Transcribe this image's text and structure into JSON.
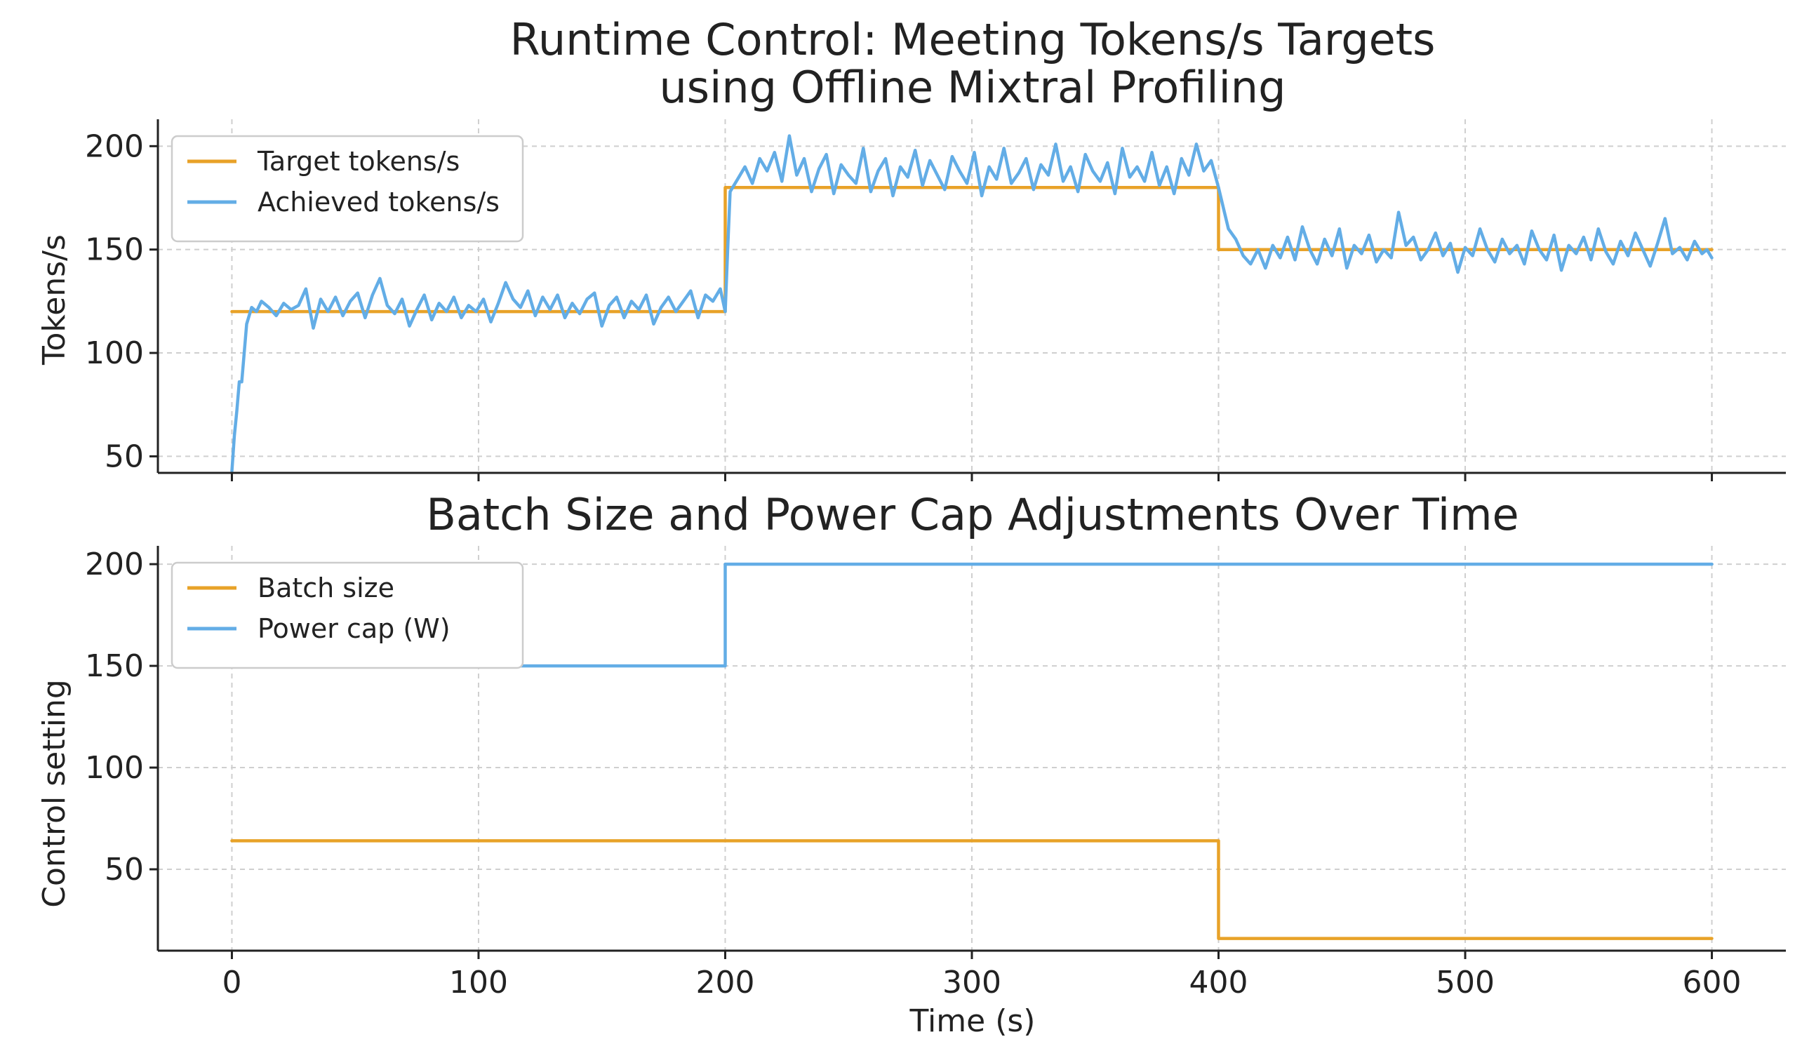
{
  "figure": {
    "xlabel": "Time (s)",
    "xticks": [
      0,
      100,
      200,
      300,
      400,
      500,
      600
    ]
  },
  "colors": {
    "orange": "#e8a228",
    "blue": "#63ade6"
  },
  "chart_data": [
    {
      "type": "line",
      "title_lines": [
        "Runtime Control: Meeting Tokens/s Targets",
        "using Offline Mixtral Profiling"
      ],
      "xlabel": "",
      "ylabel": "Tokens/s",
      "xlim": [
        -30,
        630
      ],
      "ylim": [
        42,
        213
      ],
      "yticks": [
        50,
        100,
        150,
        200
      ],
      "grid": true,
      "legend_position": "top-left",
      "series": [
        {
          "name": "Target tokens/s",
          "color": "orange",
          "step": true,
          "x": [
            0,
            200,
            200,
            400,
            400,
            600
          ],
          "values": [
            120,
            120,
            180,
            180,
            150,
            150
          ]
        },
        {
          "name": "Achieved tokens/s",
          "color": "blue",
          "x": [
            0,
            1,
            2,
            3,
            4,
            5,
            6,
            8,
            10,
            12,
            15,
            18,
            21,
            24,
            27,
            30,
            33,
            36,
            39,
            42,
            45,
            48,
            51,
            54,
            57,
            60,
            63,
            66,
            69,
            72,
            75,
            78,
            81,
            84,
            87,
            90,
            93,
            96,
            99,
            102,
            105,
            108,
            111,
            114,
            117,
            120,
            123,
            126,
            129,
            132,
            135,
            138,
            141,
            144,
            147,
            150,
            153,
            156,
            159,
            162,
            165,
            168,
            171,
            174,
            177,
            180,
            183,
            186,
            189,
            192,
            195,
            198,
            200,
            201,
            202,
            205,
            208,
            211,
            214,
            217,
            220,
            223,
            226,
            229,
            232,
            235,
            238,
            241,
            244,
            247,
            250,
            253,
            256,
            259,
            262,
            265,
            268,
            271,
            274,
            277,
            280,
            283,
            286,
            289,
            292,
            295,
            298,
            301,
            304,
            307,
            310,
            313,
            316,
            319,
            322,
            325,
            328,
            331,
            334,
            337,
            340,
            343,
            346,
            349,
            352,
            355,
            358,
            361,
            364,
            367,
            370,
            373,
            376,
            379,
            382,
            385,
            388,
            391,
            394,
            397,
            400,
            402,
            404,
            407,
            410,
            413,
            416,
            419,
            422,
            425,
            428,
            431,
            434,
            437,
            440,
            443,
            446,
            449,
            452,
            455,
            458,
            461,
            464,
            467,
            470,
            473,
            476,
            479,
            482,
            485,
            488,
            491,
            494,
            497,
            500,
            503,
            506,
            509,
            512,
            515,
            518,
            521,
            524,
            527,
            530,
            533,
            536,
            539,
            542,
            545,
            548,
            551,
            554,
            557,
            560,
            563,
            566,
            569,
            572,
            575,
            578,
            581,
            584,
            587,
            590,
            593,
            596,
            598,
            600
          ],
          "values": [
            43,
            60,
            72,
            86,
            86,
            100,
            114,
            122,
            120,
            125,
            122,
            118,
            124,
            121,
            123,
            131,
            112,
            126,
            120,
            127,
            118,
            125,
            129,
            117,
            128,
            136,
            123,
            119,
            126,
            113,
            121,
            128,
            116,
            124,
            120,
            127,
            117,
            123,
            120,
            126,
            115,
            124,
            134,
            126,
            122,
            130,
            118,
            127,
            121,
            128,
            117,
            124,
            119,
            126,
            129,
            113,
            123,
            127,
            117,
            125,
            121,
            128,
            114,
            122,
            127,
            120,
            125,
            130,
            117,
            128,
            125,
            131,
            120,
            150,
            178,
            184,
            190,
            182,
            194,
            188,
            197,
            183,
            205,
            186,
            194,
            178,
            189,
            196,
            177,
            191,
            186,
            182,
            199,
            178,
            188,
            194,
            176,
            190,
            185,
            198,
            181,
            193,
            186,
            179,
            195,
            188,
            182,
            197,
            176,
            190,
            184,
            199,
            182,
            187,
            194,
            179,
            191,
            186,
            201,
            183,
            190,
            178,
            196,
            188,
            183,
            192,
            177,
            199,
            185,
            190,
            183,
            197,
            181,
            190,
            177,
            194,
            186,
            201,
            188,
            193,
            180,
            170,
            160,
            155,
            147,
            143,
            150,
            141,
            152,
            146,
            156,
            145,
            161,
            150,
            143,
            155,
            147,
            160,
            141,
            152,
            148,
            157,
            144,
            150,
            146,
            168,
            152,
            156,
            145,
            150,
            158,
            147,
            153,
            139,
            151,
            147,
            160,
            150,
            144,
            155,
            148,
            152,
            143,
            159,
            150,
            145,
            157,
            140,
            152,
            148,
            156,
            145,
            160,
            149,
            143,
            154,
            147,
            158,
            150,
            142,
            153,
            165,
            148,
            151,
            145,
            154,
            148,
            150,
            146
          ]
        }
      ]
    },
    {
      "type": "line",
      "title_lines": [
        "Batch Size and Power Cap Adjustments Over Time"
      ],
      "xlabel": "Time (s)",
      "ylabel": "Control setting",
      "xlim": [
        -30,
        630
      ],
      "ylim": [
        10,
        209
      ],
      "yticks": [
        50,
        100,
        150,
        200
      ],
      "grid": true,
      "legend_position": "top-left",
      "series": [
        {
          "name": "Batch size",
          "color": "orange",
          "step": true,
          "x": [
            0,
            400,
            400,
            600
          ],
          "values": [
            64,
            64,
            16,
            16
          ]
        },
        {
          "name": "Power cap (W)",
          "color": "blue",
          "step": true,
          "x": [
            0,
            200,
            200,
            600
          ],
          "values": [
            150,
            150,
            200,
            200
          ]
        }
      ]
    }
  ]
}
